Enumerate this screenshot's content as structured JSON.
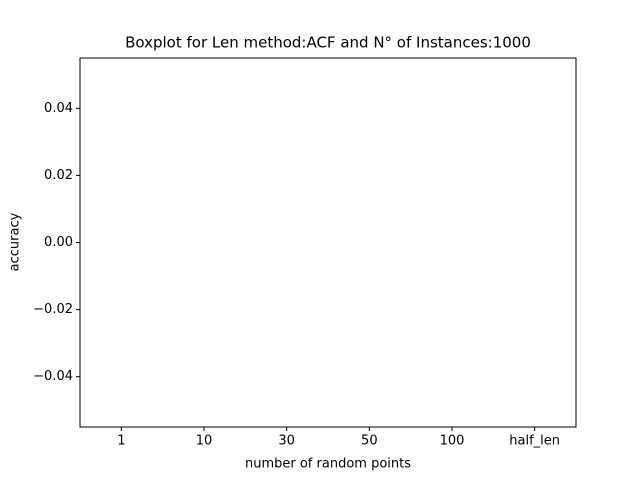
{
  "chart_data": {
    "type": "box",
    "title": "Boxplot for Len method:ACF and N° of Instances:1000",
    "x_label": "number of random points",
    "y_label": "accuracy",
    "categories": [
      "1",
      "10",
      "30",
      "50",
      "100",
      "half_len"
    ],
    "ylim": [
      -0.055,
      0.055
    ],
    "yticks": [
      {
        "value": -0.04,
        "label": "−0.04"
      },
      {
        "value": -0.02,
        "label": "−0.02"
      },
      {
        "value": 0,
        "label": "0.00"
      },
      {
        "value": 0.02,
        "label": "0.02"
      },
      {
        "value": 0.04,
        "label": "0.04"
      }
    ]
  }
}
